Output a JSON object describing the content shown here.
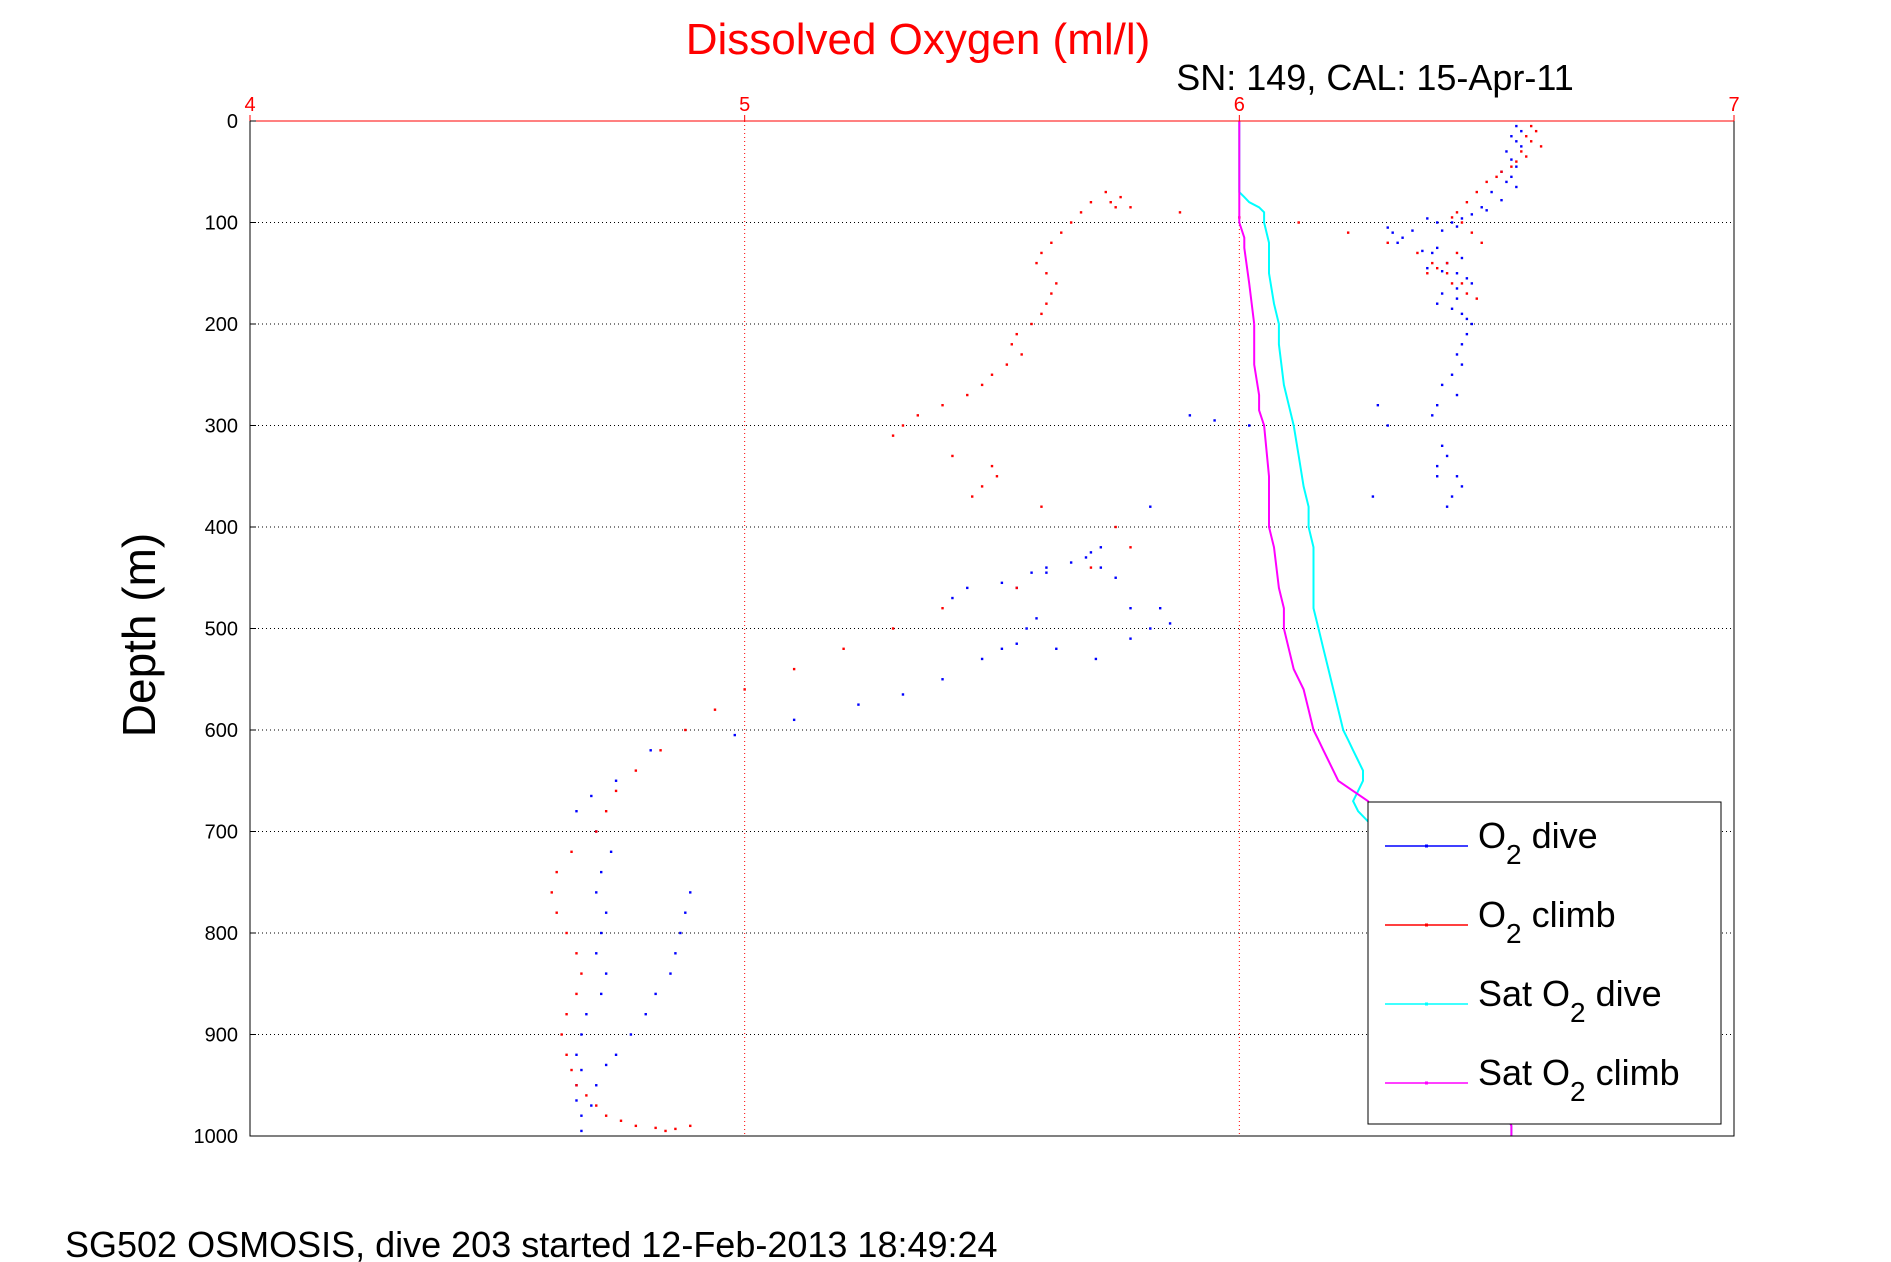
{
  "chart_data": {
    "type": "scatter",
    "title": "Dissolved Oxygen (ml/l)",
    "subtitle": "SN: 149, CAL: 15-Apr-11",
    "xlabel": "",
    "ylabel": "Depth (m)",
    "footer": "SG502 OSMOSIS, dive 203 started 12-Feb-2013 18:49:24",
    "xlim": [
      4,
      7
    ],
    "ylim": [
      0,
      1000
    ],
    "y_reversed": true,
    "x_axis_position": "top",
    "grid": true,
    "x_ticks": [
      "4",
      "5",
      "6",
      "7"
    ],
    "y_ticks": [
      "0",
      "100",
      "200",
      "300",
      "400",
      "500",
      "600",
      "700",
      "800",
      "900",
      "1000"
    ],
    "colors": {
      "title": "#ff0000",
      "x_ticks": "#ff0000",
      "x_grid": "#ff0000",
      "y_grid": "#000000",
      "o2_dive": "#0000ff",
      "o2_climb": "#ff0000",
      "sat_dive": "#00ffff",
      "sat_climb": "#ff00ff"
    },
    "legend": {
      "position": "lower-right",
      "entries": [
        {
          "prefix": "O",
          "sub": "2",
          "suffix": " dive",
          "color": "#0000ff"
        },
        {
          "prefix": "O",
          "sub": "2",
          "suffix": " climb",
          "color": "#ff0000"
        },
        {
          "prefix": "Sat O",
          "sub": "2",
          "suffix": " dive",
          "color": "#00ffff"
        },
        {
          "prefix": "Sat O",
          "sub": "2",
          "suffix": " climb",
          "color": "#ff00ff"
        }
      ]
    },
    "series": [
      {
        "key": "o2_dive",
        "style": "dots",
        "x": [
          6.56,
          6.57,
          6.55,
          6.56,
          6.57,
          6.54,
          6.55,
          6.56,
          6.53,
          6.55,
          6.54,
          6.56,
          6.51,
          6.53,
          6.49,
          6.5,
          6.47,
          6.45,
          6.43,
          6.44,
          6.41,
          6.4,
          6.38,
          6.3,
          6.31,
          6.33,
          6.35,
          6.32,
          6.4,
          6.37,
          6.39,
          6.45,
          6.42,
          6.38,
          6.41,
          6.44,
          6.46,
          6.47,
          6.44,
          6.41,
          6.44,
          6.4,
          6.43,
          6.45,
          6.46,
          6.47,
          6.46,
          6.45,
          6.44,
          6.45,
          6.43,
          6.41,
          6.44,
          6.4,
          6.39,
          6.28,
          6.3,
          6.41,
          6.42,
          6.4,
          6.44,
          6.45,
          6.43,
          6.42,
          6.27,
          6.4,
          6.02,
          5.95,
          5.9,
          5.82,
          5.72,
          5.61,
          5.52,
          5.45,
          5.42,
          5.59,
          5.57,
          5.55,
          5.63,
          5.71,
          5.78,
          5.82,
          5.86,
          5.84,
          5.78,
          5.75,
          5.72,
          5.7,
          5.69,
          5.66,
          5.61,
          5.58,
          5.55,
          5.52,
          5.48,
          5.4,
          5.32,
          5.23,
          5.1,
          4.98,
          4.81,
          4.74,
          4.69,
          4.66,
          4.7,
          4.73,
          4.71,
          4.7,
          4.72,
          4.71,
          4.7,
          4.72,
          4.71,
          4.68,
          4.67,
          4.66,
          4.67,
          4.66,
          4.66,
          4.67,
          4.67,
          4.69,
          4.7,
          4.72,
          4.74,
          4.77,
          4.8,
          4.82,
          4.85,
          4.86,
          4.87,
          4.88,
          4.89
        ],
        "y": [
          5,
          10,
          15,
          20,
          25,
          30,
          38,
          45,
          50,
          55,
          60,
          65,
          70,
          78,
          85,
          88,
          92,
          96,
          100,
          104,
          108,
          100,
          96,
          105,
          110,
          115,
          108,
          120,
          125,
          128,
          130,
          135,
          140,
          145,
          148,
          150,
          155,
          160,
          165,
          170,
          175,
          180,
          185,
          190,
          195,
          200,
          210,
          220,
          230,
          240,
          250,
          260,
          270,
          280,
          290,
          280,
          300,
          320,
          330,
          340,
          350,
          360,
          370,
          380,
          370,
          350,
          300,
          295,
          290,
          380,
          420,
          445,
          455,
          460,
          470,
          490,
          500,
          515,
          520,
          530,
          510,
          500,
          495,
          480,
          480,
          450,
          440,
          425,
          430,
          435,
          440,
          445,
          460,
          520,
          530,
          550,
          565,
          575,
          590,
          605,
          620,
          650,
          665,
          680,
          700,
          720,
          740,
          760,
          780,
          800,
          820,
          840,
          860,
          880,
          900,
          920,
          935,
          950,
          965,
          980,
          995,
          970,
          950,
          930,
          920,
          900,
          880,
          860,
          840,
          820,
          800,
          780,
          760
        ]
      },
      {
        "key": "o2_climb",
        "style": "dots",
        "x": [
          6.59,
          6.6,
          6.58,
          6.59,
          6.61,
          6.57,
          6.58,
          6.56,
          6.55,
          6.53,
          6.52,
          6.5,
          6.48,
          6.46,
          6.44,
          6.43,
          6.45,
          6.47,
          6.49,
          6.44,
          6.42,
          6.4,
          6.38,
          6.43,
          6.46,
          6.48,
          6.45,
          6.42,
          6.39,
          6.36,
          6.3,
          6.22,
          6.12,
          6.0,
          5.88,
          5.78,
          5.75,
          5.74,
          5.76,
          5.73,
          5.7,
          5.68,
          5.66,
          5.64,
          5.62,
          5.6,
          5.59,
          5.61,
          5.63,
          5.62,
          5.61,
          5.6,
          5.58,
          5.55,
          5.54,
          5.56,
          5.53,
          5.5,
          5.48,
          5.45,
          5.4,
          5.35,
          5.32,
          5.3,
          5.42,
          5.5,
          5.51,
          5.48,
          5.46,
          5.6,
          5.75,
          5.78,
          5.7,
          5.55,
          5.4,
          5.3,
          5.2,
          5.1,
          5.0,
          4.94,
          4.88,
          4.83,
          4.78,
          4.74,
          4.72,
          4.7,
          4.65,
          4.62,
          4.61,
          4.62,
          4.64,
          4.66,
          4.67,
          4.66,
          4.64,
          4.63,
          4.64,
          4.65,
          4.66,
          4.68,
          4.7,
          4.72,
          4.75,
          4.78,
          4.82,
          4.84,
          4.86,
          4.89
        ],
        "y": [
          5,
          10,
          15,
          20,
          25,
          30,
          35,
          40,
          45,
          50,
          55,
          60,
          70,
          80,
          90,
          95,
          100,
          110,
          120,
          130,
          140,
          145,
          150,
          160,
          170,
          175,
          160,
          150,
          140,
          130,
          120,
          110,
          100,
          95,
          90,
          85,
          85,
          80,
          75,
          70,
          80,
          90,
          100,
          110,
          120,
          130,
          140,
          150,
          160,
          170,
          180,
          190,
          200,
          210,
          220,
          230,
          240,
          250,
          260,
          270,
          280,
          290,
          300,
          310,
          330,
          340,
          350,
          360,
          370,
          380,
          400,
          420,
          440,
          460,
          480,
          500,
          520,
          540,
          560,
          580,
          600,
          620,
          640,
          660,
          680,
          700,
          720,
          740,
          760,
          780,
          800,
          820,
          840,
          860,
          880,
          900,
          920,
          935,
          950,
          960,
          970,
          980,
          985,
          990,
          992,
          995,
          993,
          990
        ]
      },
      {
        "key": "sat_dive",
        "style": "line",
        "x": [
          6.0,
          6.0,
          6.0,
          6.0,
          6.01,
          6.02,
          6.04,
          6.05,
          6.05,
          6.06,
          6.06,
          6.07,
          6.08,
          6.08,
          6.09,
          6.1,
          6.11,
          6.12,
          6.13,
          6.14,
          6.14,
          6.15,
          6.15,
          6.15,
          6.15,
          6.16,
          6.17,
          6.18,
          6.19,
          6.2,
          6.21,
          6.22,
          6.23,
          6.24,
          6.25,
          6.25,
          6.24,
          6.23,
          6.24,
          6.26,
          6.3,
          6.33,
          6.34,
          6.35,
          6.36,
          6.38,
          6.4,
          6.42,
          6.44,
          6.46,
          6.48,
          6.5,
          6.52,
          6.54,
          6.55,
          6.55
        ],
        "y": [
          0,
          30,
          60,
          70,
          75,
          80,
          85,
          90,
          100,
          120,
          150,
          180,
          200,
          220,
          260,
          280,
          300,
          330,
          360,
          380,
          400,
          420,
          440,
          460,
          480,
          500,
          520,
          540,
          560,
          580,
          600,
          610,
          620,
          630,
          640,
          650,
          660,
          670,
          680,
          690,
          700,
          710,
          720,
          730,
          740,
          760,
          780,
          800,
          830,
          860,
          890,
          920,
          950,
          980,
          990,
          1000
        ]
      },
      {
        "key": "sat_climb",
        "style": "line",
        "x": [
          6.0,
          6.0,
          6.0,
          6.0,
          6.0,
          6.01,
          6.01,
          6.02,
          6.03,
          6.03,
          6.04,
          6.04,
          6.05,
          6.06,
          6.06,
          6.07,
          6.08,
          6.09,
          6.09,
          6.1,
          6.11,
          6.12,
          6.13,
          6.14,
          6.15,
          6.16,
          6.17,
          6.18,
          6.19,
          6.2,
          6.23,
          6.26,
          6.27,
          6.28,
          6.29,
          6.3,
          6.31,
          6.32,
          6.34,
          6.36,
          6.38,
          6.4,
          6.42,
          6.44,
          6.46,
          6.48,
          6.5,
          6.52,
          6.54,
          6.55,
          6.55
        ],
        "y": [
          0,
          30,
          60,
          80,
          100,
          115,
          125,
          160,
          200,
          240,
          270,
          285,
          300,
          350,
          400,
          420,
          460,
          480,
          500,
          520,
          540,
          550,
          560,
          580,
          600,
          610,
          620,
          630,
          640,
          650,
          660,
          670,
          680,
          690,
          700,
          710,
          720,
          730,
          740,
          760,
          780,
          800,
          830,
          860,
          890,
          920,
          950,
          970,
          980,
          990,
          1000
        ]
      }
    ]
  }
}
